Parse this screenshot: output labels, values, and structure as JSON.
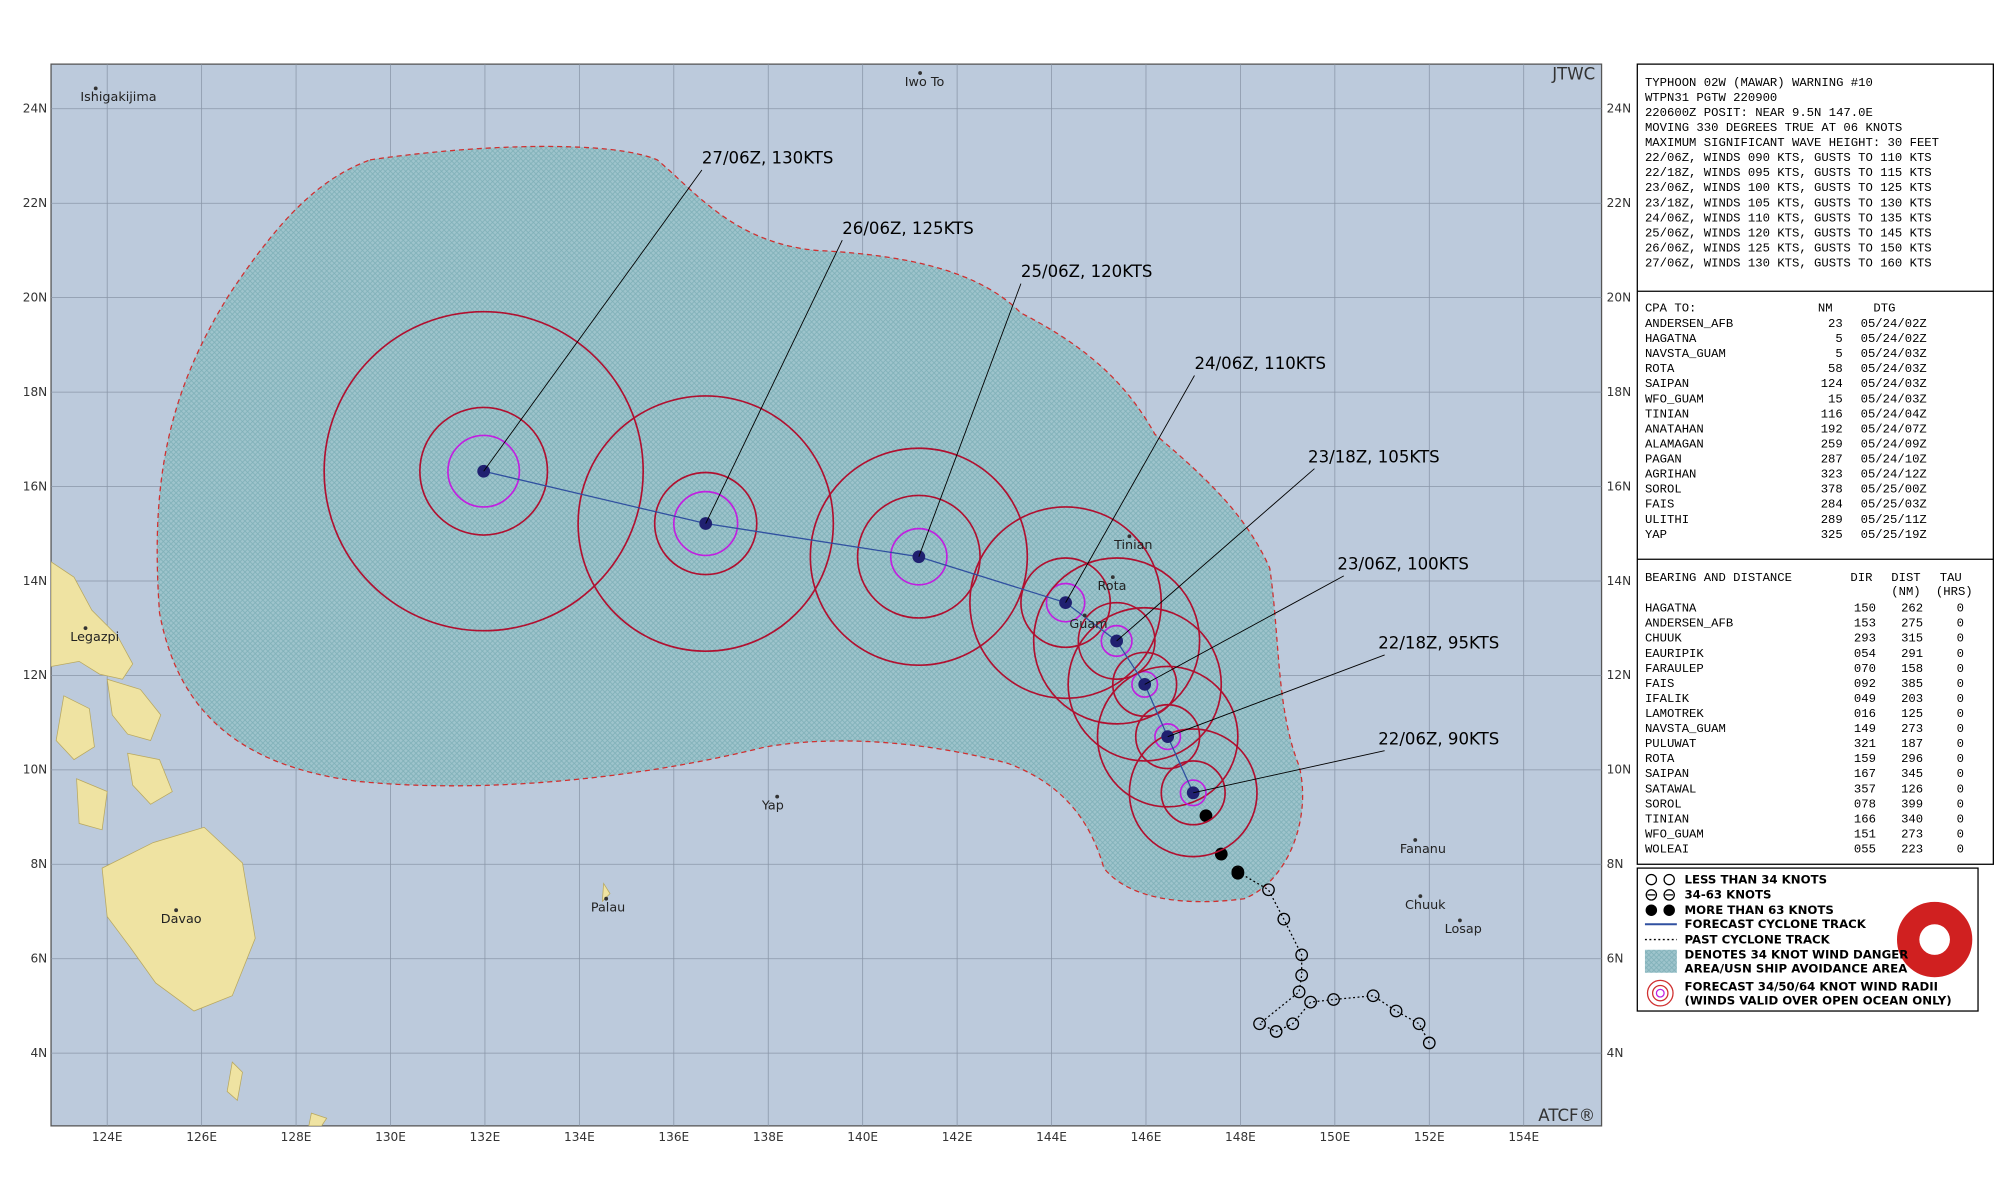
{
  "map": {
    "corner_labels": [
      "JTWC",
      "ATCF®"
    ],
    "lat_labels": [
      "24N",
      "22N",
      "20N",
      "18N",
      "16N",
      "14N",
      "12N",
      "10N",
      "8N",
      "6N",
      "4N"
    ],
    "lon_labels": [
      "124E",
      "126E",
      "128E",
      "130E",
      "132E",
      "134E",
      "136E",
      "138E",
      "140E",
      "142E",
      "144E",
      "146E",
      "148E",
      "150E",
      "152E",
      "154E"
    ],
    "places": [
      "Ishigakijima",
      "Iwo To",
      "Tinian",
      "Rota",
      "Guam",
      "Legazpi",
      "Yap",
      "Palau",
      "Davao",
      "Fananu",
      "Chuuk",
      "Losap"
    ],
    "forecast_labels": [
      "27/06Z, 130KTS",
      "26/06Z, 125KTS",
      "25/06Z, 120KTS",
      "24/06Z, 110KTS",
      "23/18Z, 105KTS",
      "23/06Z, 100KTS",
      "22/18Z,  95KTS",
      "22/06Z,  90KTS"
    ]
  },
  "warning": {
    "lines": [
      "TYPHOON 02W (MAWAR) WARNING #10",
      "WTPN31 PGTW 220900",
      "220600Z POSIT: NEAR 9.5N 147.0E",
      "MOVING 330 DEGREES TRUE AT 06 KNOTS",
      "MAXIMUM SIGNIFICANT WAVE HEIGHT: 30 FEET",
      "22/06Z, WINDS 090 KTS, GUSTS TO 110 KTS",
      "22/18Z, WINDS 095 KTS, GUSTS TO 115 KTS",
      "23/06Z, WINDS 100 KTS, GUSTS TO 125 KTS",
      "23/18Z, WINDS 105 KTS, GUSTS TO 130 KTS",
      "24/06Z, WINDS 110 KTS, GUSTS TO 135 KTS",
      "25/06Z, WINDS 120 KTS, GUSTS TO 145 KTS",
      "26/06Z, WINDS 125 KTS, GUSTS TO 150 KTS",
      "27/06Z, WINDS 130 KTS, GUSTS TO 160 KTS"
    ]
  },
  "cpa": {
    "header": [
      "CPA TO:",
      "NM",
      "DTG"
    ],
    "rows": [
      [
        "ANDERSEN_AFB",
        "23",
        "05/24/02Z"
      ],
      [
        "HAGATNA",
        "5",
        "05/24/02Z"
      ],
      [
        "NAVSTA_GUAM",
        "5",
        "05/24/03Z"
      ],
      [
        "ROTA",
        "58",
        "05/24/03Z"
      ],
      [
        "SAIPAN",
        "124",
        "05/24/03Z"
      ],
      [
        "WFO_GUAM",
        "15",
        "05/24/03Z"
      ],
      [
        "TINIAN",
        "116",
        "05/24/04Z"
      ],
      [
        "ANATAHAN",
        "192",
        "05/24/07Z"
      ],
      [
        "ALAMAGAN",
        "259",
        "05/24/09Z"
      ],
      [
        "PAGAN",
        "287",
        "05/24/10Z"
      ],
      [
        "AGRIHAN",
        "323",
        "05/24/12Z"
      ],
      [
        "SOROL",
        "378",
        "05/25/00Z"
      ],
      [
        "FAIS",
        "284",
        "05/25/03Z"
      ],
      [
        "ULITHI",
        "289",
        "05/25/11Z"
      ],
      [
        "YAP",
        "325",
        "05/25/19Z"
      ]
    ]
  },
  "bearing": {
    "header": [
      "BEARING AND DISTANCE",
      "DIR",
      "DIST",
      "TAU"
    ],
    "subheader": [
      "(NM)",
      "(HRS)"
    ],
    "rows": [
      [
        "HAGATNA",
        "150",
        "262",
        "0"
      ],
      [
        "ANDERSEN_AFB",
        "153",
        "275",
        "0"
      ],
      [
        "CHUUK",
        "293",
        "315",
        "0"
      ],
      [
        "EAURIPIK",
        "054",
        "291",
        "0"
      ],
      [
        "FARAULEP",
        "070",
        "158",
        "0"
      ],
      [
        "FAIS",
        "092",
        "385",
        "0"
      ],
      [
        "IFALIK",
        "049",
        "203",
        "0"
      ],
      [
        "LAMOTREK",
        "016",
        "125",
        "0"
      ],
      [
        "NAVSTA_GUAM",
        "149",
        "273",
        "0"
      ],
      [
        "PULUWAT",
        "321",
        "187",
        "0"
      ],
      [
        "ROTA",
        "159",
        "296",
        "0"
      ],
      [
        "SAIPAN",
        "167",
        "345",
        "0"
      ],
      [
        "SATAWAL",
        "357",
        "126",
        "0"
      ],
      [
        "SOROL",
        "078",
        "399",
        "0"
      ],
      [
        "TINIAN",
        "166",
        "340",
        "0"
      ],
      [
        "WFO_GUAM",
        "151",
        "273",
        "0"
      ],
      [
        "WOLEAI",
        "055",
        "223",
        "0"
      ]
    ]
  },
  "legend": {
    "items": [
      "LESS THAN 34 KNOTS",
      "34-63 KNOTS",
      "MORE THAN 63 KNOTS",
      "FORECAST CYCLONE TRACK",
      "PAST CYCLONE TRACK",
      "DENOTES 34 KNOT WIND DANGER",
      "AREA/USN SHIP AVOIDANCE AREA",
      "FORECAST 34/50/64 KNOT WIND RADII",
      "(WINDS VALID OVER OPEN OCEAN ONLY)"
    ]
  }
}
